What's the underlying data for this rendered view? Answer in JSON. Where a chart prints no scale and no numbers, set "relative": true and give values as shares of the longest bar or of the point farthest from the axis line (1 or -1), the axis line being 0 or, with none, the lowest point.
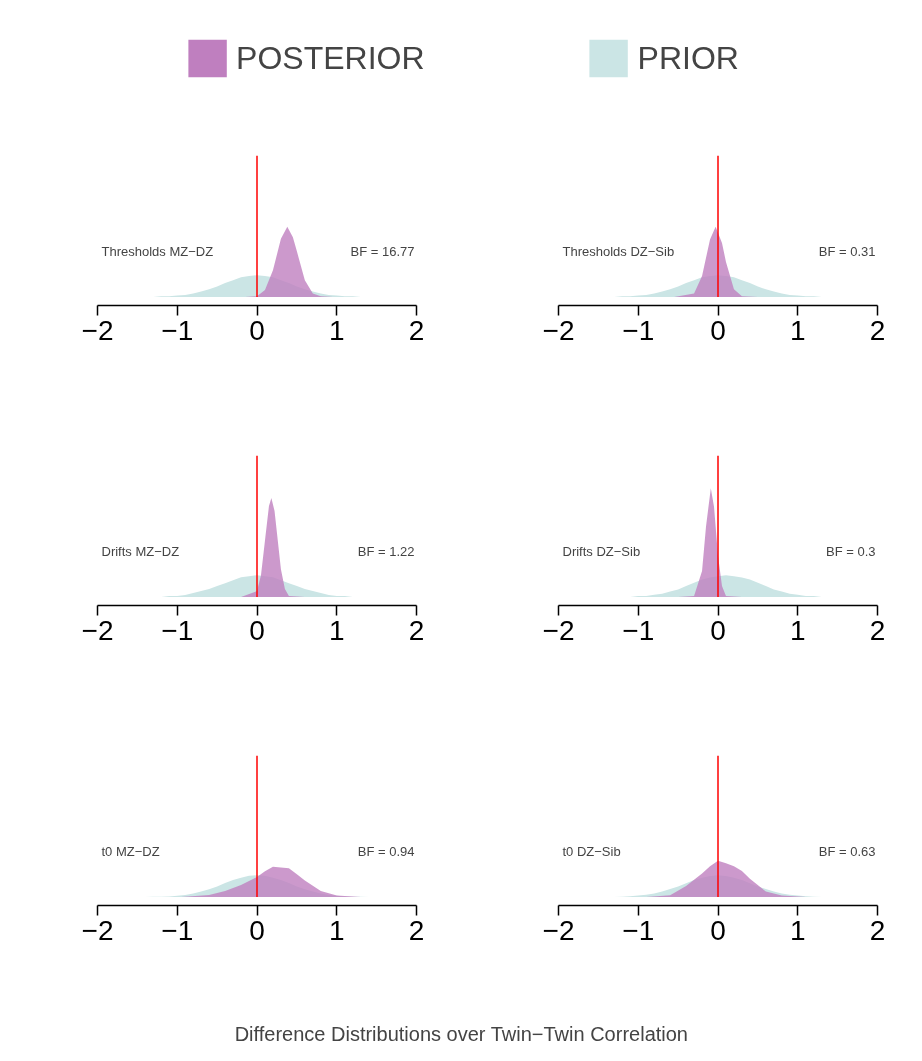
{
  "chart_data": [
    {
      "type": "area",
      "title": "Thresholds MZ−DZ",
      "annotations": [
        "BF = 16.77"
      ],
      "relative": true,
      "legend": "top",
      "xlim": [
        -2,
        2
      ],
      "xticks": [
        -2,
        -1,
        0,
        1,
        2
      ],
      "ref_lines": [
        {
          "axis": "x",
          "value": 0,
          "color": "#ff0000"
        }
      ],
      "series": [
        {
          "name": "PRIOR",
          "color": "#cbe5e5",
          "x": [
            -2,
            -1.9,
            -1.8,
            -1.7,
            -1.6,
            -1.5,
            -1.4,
            -1.3,
            -1.2,
            -1.1,
            -1,
            -0.9,
            -0.8,
            -0.7,
            -0.6,
            -0.5,
            -0.4,
            -0.3,
            -0.2,
            -0.1,
            0,
            0.1,
            0.2,
            0.3,
            0.4,
            0.5,
            0.6,
            0.7,
            0.8,
            0.9,
            1,
            1.1,
            1.2,
            1.3,
            1.4,
            1.5,
            1.6,
            1.7,
            1.8,
            1.9,
            2
          ],
          "values": [
            0,
            0,
            0,
            0,
            0,
            0,
            0,
            0,
            0.01,
            0.01,
            0.02,
            0.03,
            0.05,
            0.08,
            0.11,
            0.15,
            0.2,
            0.24,
            0.28,
            0.3,
            0.31,
            0.3,
            0.28,
            0.24,
            0.2,
            0.15,
            0.11,
            0.08,
            0.05,
            0.03,
            0.02,
            0.01,
            0.01,
            0,
            0,
            0,
            0,
            0,
            0,
            0,
            0
          ]
        },
        {
          "name": "POSTERIOR",
          "color": "#bf7fbf",
          "x": [
            -0.15,
            0,
            0.1,
            0.2,
            0.3,
            0.38,
            0.45,
            0.5,
            0.6,
            0.7,
            0.8,
            0.95
          ],
          "values": [
            0,
            0.01,
            0.1,
            0.38,
            0.83,
            1,
            0.85,
            0.65,
            0.24,
            0.05,
            0.01,
            0
          ]
        }
      ]
    },
    {
      "type": "area",
      "title": "Thresholds DZ−Sib",
      "annotations": [
        "BF = 0.31"
      ],
      "relative": true,
      "xlim": [
        -2,
        2
      ],
      "xticks": [
        -2,
        -1,
        0,
        1,
        2
      ],
      "ref_lines": [
        {
          "axis": "x",
          "value": 0,
          "color": "#ff0000"
        }
      ],
      "series": [
        {
          "color": "#cbe5e5",
          "x": [
            -2,
            -1.9,
            -1.8,
            -1.7,
            -1.6,
            -1.5,
            -1.4,
            -1.3,
            -1.2,
            -1.1,
            -1,
            -0.9,
            -0.8,
            -0.7,
            -0.6,
            -0.5,
            -0.4,
            -0.3,
            -0.2,
            -0.1,
            0,
            0.1,
            0.2,
            0.3,
            0.4,
            0.5,
            0.6,
            0.7,
            0.8,
            0.9,
            1,
            1.1,
            1.2,
            1.3,
            1.4,
            1.5,
            1.6,
            1.7,
            1.8,
            1.9,
            2
          ],
          "values": [
            0,
            0,
            0,
            0,
            0,
            0,
            0,
            0,
            0.01,
            0.01,
            0.02,
            0.03,
            0.05,
            0.08,
            0.11,
            0.15,
            0.2,
            0.24,
            0.28,
            0.3,
            0.31,
            0.3,
            0.28,
            0.24,
            0.2,
            0.15,
            0.11,
            0.08,
            0.05,
            0.03,
            0.02,
            0.01,
            0.01,
            0,
            0,
            0,
            0,
            0,
            0,
            0,
            0
          ]
        },
        {
          "color": "#bf7fbf",
          "x": [
            -0.55,
            -0.3,
            -0.2,
            -0.1,
            -0.03,
            0.05,
            0.1,
            0.2,
            0.3,
            0.5
          ],
          "values": [
            0,
            0.05,
            0.3,
            0.82,
            1,
            0.77,
            0.5,
            0.11,
            0.01,
            0
          ]
        }
      ]
    },
    {
      "type": "area",
      "title": "Drifts MZ−DZ",
      "annotations": [
        "BF = 1.22"
      ],
      "relative": true,
      "xlim": [
        -2,
        2
      ],
      "xticks": [
        -2,
        -1,
        0,
        1,
        2
      ],
      "ref_lines": [
        {
          "axis": "x",
          "value": 0,
          "color": "#ff0000"
        }
      ],
      "series": [
        {
          "color": "#cbe5e5",
          "x": [
            -2,
            -1.9,
            -1.8,
            -1.7,
            -1.6,
            -1.5,
            -1.4,
            -1.3,
            -1.2,
            -1.1,
            -1,
            -0.9,
            -0.8,
            -0.7,
            -0.6,
            -0.5,
            -0.4,
            -0.3,
            -0.2,
            -0.1,
            0,
            0.1,
            0.2,
            0.3,
            0.4,
            0.5,
            0.6,
            0.7,
            0.8,
            0.9,
            1,
            1.1,
            1.2,
            1.3,
            1.4,
            1.5,
            1.6,
            1.7,
            1.8,
            1.9,
            2
          ],
          "values": [
            0,
            0,
            0,
            0,
            0,
            0,
            0,
            0,
            0,
            0.01,
            0.01,
            0.02,
            0.04,
            0.06,
            0.08,
            0.11,
            0.14,
            0.17,
            0.2,
            0.21,
            0.22,
            0.21,
            0.2,
            0.17,
            0.14,
            0.11,
            0.08,
            0.06,
            0.04,
            0.02,
            0.01,
            0.01,
            0,
            0,
            0,
            0,
            0,
            0,
            0,
            0,
            0
          ]
        },
        {
          "color": "#bf7fbf",
          "x": [
            -0.2,
            0,
            0.05,
            0.1,
            0.15,
            0.18,
            0.22,
            0.3,
            0.35,
            0.4,
            0.6
          ],
          "values": [
            0,
            0.06,
            0.22,
            0.57,
            0.92,
            1,
            0.87,
            0.28,
            0.08,
            0.01,
            0
          ]
        }
      ]
    },
    {
      "type": "area",
      "title": "Drifts DZ−Sib",
      "annotations": [
        "BF = 0.3"
      ],
      "relative": true,
      "xlim": [
        -2,
        2
      ],
      "xticks": [
        -2,
        -1,
        0,
        1,
        2
      ],
      "ref_lines": [
        {
          "axis": "x",
          "value": 0,
          "color": "#ff0000"
        }
      ],
      "series": [
        {
          "color": "#cbe5e5",
          "x": [
            -2,
            -1.9,
            -1.8,
            -1.7,
            -1.6,
            -1.5,
            -1.4,
            -1.3,
            -1.2,
            -1.1,
            -1,
            -0.9,
            -0.8,
            -0.7,
            -0.6,
            -0.5,
            -0.4,
            -0.3,
            -0.2,
            -0.1,
            0,
            0.1,
            0.2,
            0.3,
            0.4,
            0.5,
            0.6,
            0.7,
            0.8,
            0.9,
            1,
            1.1,
            1.2,
            1.3,
            1.4,
            1.5,
            1.6,
            1.7,
            1.8,
            1.9,
            2
          ],
          "values": [
            0,
            0,
            0,
            0,
            0,
            0,
            0,
            0,
            0,
            0,
            0.01,
            0.01,
            0.02,
            0.03,
            0.05,
            0.07,
            0.1,
            0.13,
            0.16,
            0.18,
            0.19,
            0.2,
            0.19,
            0.18,
            0.16,
            0.13,
            0.1,
            0.07,
            0.05,
            0.03,
            0.02,
            0.01,
            0.01,
            0,
            0,
            0,
            0,
            0,
            0,
            0,
            0
          ]
        },
        {
          "color": "#bf7fbf",
          "x": [
            -0.5,
            -0.3,
            -0.2,
            -0.15,
            -0.09,
            -0.05,
            0,
            0.05,
            0.1,
            0.3
          ],
          "values": [
            0,
            0.01,
            0.24,
            0.65,
            1,
            0.83,
            0.38,
            0.1,
            0.01,
            0
          ]
        }
      ]
    },
    {
      "type": "area",
      "title": "t0 MZ−DZ",
      "annotations": [
        "BF = 0.94"
      ],
      "relative": true,
      "xlabel": "Difference Distributions over Twin−Twin Correlation",
      "xlim": [
        -2,
        2
      ],
      "xticks": [
        -2,
        -1,
        0,
        1,
        2
      ],
      "ref_lines": [
        {
          "axis": "x",
          "value": 0,
          "color": "#ff0000"
        }
      ],
      "series": [
        {
          "color": "#cbe5e5",
          "x": [
            -2,
            -1.9,
            -1.8,
            -1.7,
            -1.6,
            -1.5,
            -1.4,
            -1.3,
            -1.2,
            -1.1,
            -1,
            -0.9,
            -0.8,
            -0.7,
            -0.6,
            -0.5,
            -0.4,
            -0.3,
            -0.2,
            -0.1,
            0,
            0.1,
            0.2,
            0.3,
            0.4,
            0.5,
            0.6,
            0.7,
            0.8,
            0.9,
            1,
            1.1,
            1.2,
            1.3,
            1.4,
            1.5,
            1.6,
            1.7,
            1.8,
            1.9,
            2
          ],
          "values": [
            0,
            0,
            0,
            0,
            0,
            0,
            0,
            0.01,
            0.01,
            0.02,
            0.04,
            0.07,
            0.12,
            0.18,
            0.26,
            0.35,
            0.46,
            0.56,
            0.64,
            0.7,
            0.72,
            0.7,
            0.64,
            0.56,
            0.46,
            0.35,
            0.26,
            0.18,
            0.12,
            0.07,
            0.04,
            0.02,
            0.01,
            0.01,
            0,
            0,
            0,
            0,
            0,
            0,
            0
          ]
        },
        {
          "color": "#bf7fbf",
          "x": [
            -0.95,
            -0.6,
            -0.4,
            -0.2,
            0,
            0.1,
            0.2,
            0.3,
            0.4,
            0.5,
            0.6,
            0.8,
            1,
            1.3
          ],
          "values": [
            0,
            0.07,
            0.2,
            0.4,
            0.66,
            0.85,
            1,
            0.98,
            0.95,
            0.75,
            0.55,
            0.2,
            0.05,
            0
          ]
        }
      ]
    },
    {
      "type": "area",
      "title": "t0 DZ−Sib",
      "annotations": [
        "BF = 0.63"
      ],
      "relative": true,
      "xlim": [
        -2,
        2
      ],
      "xticks": [
        -2,
        -1,
        0,
        1,
        2
      ],
      "ref_lines": [
        {
          "axis": "x",
          "value": 0,
          "color": "#ff0000"
        }
      ],
      "series": [
        {
          "color": "#cbe5e5",
          "x": [
            -2,
            -1.9,
            -1.8,
            -1.7,
            -1.6,
            -1.5,
            -1.4,
            -1.3,
            -1.2,
            -1.1,
            -1,
            -0.9,
            -0.8,
            -0.7,
            -0.6,
            -0.5,
            -0.4,
            -0.3,
            -0.2,
            -0.1,
            0,
            0.1,
            0.2,
            0.3,
            0.4,
            0.5,
            0.6,
            0.7,
            0.8,
            0.9,
            1,
            1.1,
            1.2,
            1.3,
            1.4,
            1.5,
            1.6,
            1.7,
            1.8,
            1.9,
            2
          ],
          "values": [
            0,
            0,
            0,
            0,
            0,
            0,
            0,
            0,
            0.01,
            0.02,
            0.04,
            0.06,
            0.1,
            0.15,
            0.22,
            0.29,
            0.38,
            0.47,
            0.53,
            0.58,
            0.6,
            0.58,
            0.53,
            0.47,
            0.38,
            0.29,
            0.22,
            0.15,
            0.1,
            0.06,
            0.04,
            0.02,
            0.01,
            0,
            0,
            0,
            0,
            0,
            0,
            0,
            0
          ]
        },
        {
          "color": "#bf7fbf",
          "x": [
            -0.9,
            -0.6,
            -0.4,
            -0.2,
            -0.1,
            0,
            0.1,
            0.2,
            0.3,
            0.4,
            0.6,
            0.8,
            1.1
          ],
          "values": [
            0,
            0.05,
            0.3,
            0.65,
            0.85,
            1,
            0.93,
            0.85,
            0.72,
            0.5,
            0.15,
            0.04,
            0
          ]
        }
      ]
    }
  ]
}
